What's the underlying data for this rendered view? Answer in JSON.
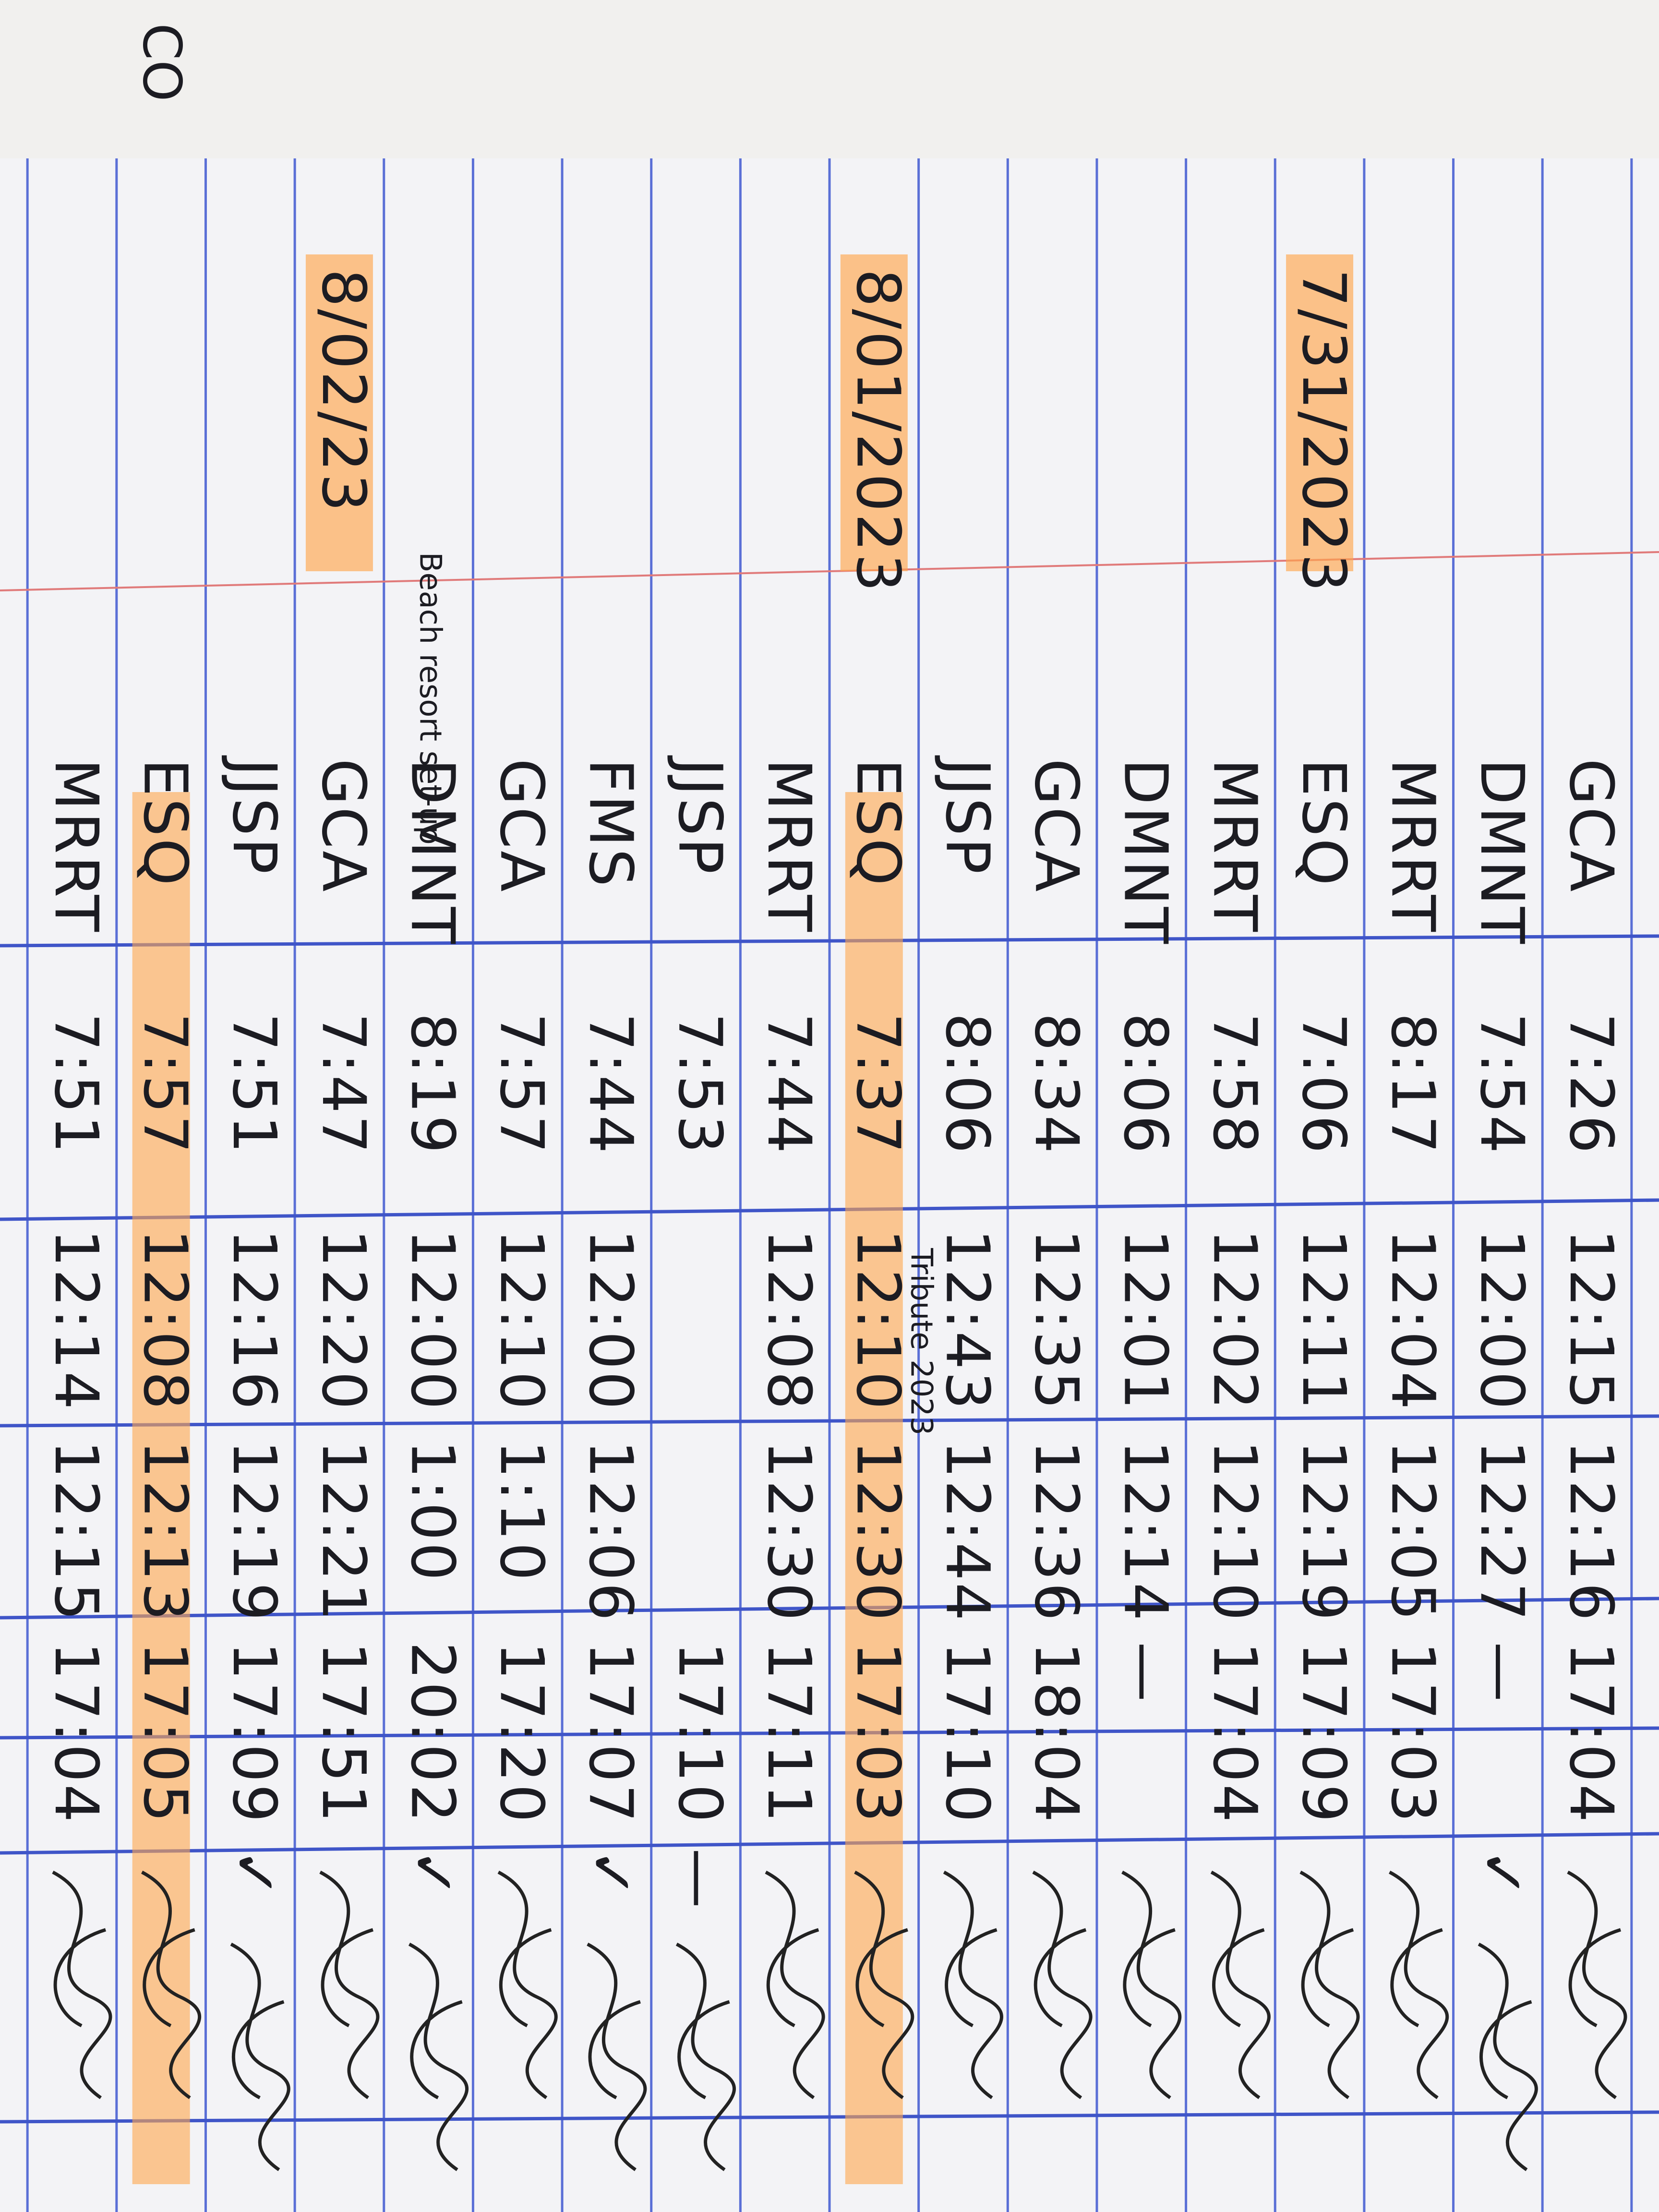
{
  "cover_text": "CO",
  "rows": [
    {
      "name": "GCA",
      "time_in": "7:26",
      "lunch_out": "12:15",
      "lunch_in": "12:16",
      "time_out": "17:04"
    },
    {
      "name": "DMNT",
      "time_in": "7:54",
      "lunch_out": "12:00",
      "lunch_in": "12:27",
      "time_out": "—",
      "mark": "✓"
    },
    {
      "name": "MRRT",
      "time_in": "8:17",
      "lunch_out": "12:04",
      "lunch_in": "12:05",
      "time_out": "17:03"
    },
    {
      "name": "ESQ",
      "date": "7/31/2023",
      "time_in": "7:06",
      "lunch_out": "12:11",
      "lunch_in": "12:19",
      "time_out": "17:09"
    },
    {
      "name": "MRRT",
      "time_in": "7:58",
      "lunch_out": "12:02",
      "lunch_in": "12:10",
      "time_out": "17:04"
    },
    {
      "name": "DMNT",
      "time_in": "8:06",
      "lunch_out": "12:01",
      "lunch_in": "12:14",
      "time_out": "—"
    },
    {
      "name": "GCA",
      "time_in": "8:34",
      "lunch_out": "12:35",
      "lunch_in": "12:36",
      "time_out": "18:04"
    },
    {
      "name": "JJSP",
      "time_in": "8:06",
      "lunch_out": "12:43",
      "lunch_in": "12:44",
      "time_out": "17:10"
    },
    {
      "name": "ESQ",
      "date": "8/01/2023",
      "note": "Tribute 2023",
      "highlight": true,
      "time_in": "7:37",
      "lunch_out": "12:10",
      "lunch_in": "12:30",
      "time_out": "17:03"
    },
    {
      "name": "MRRT",
      "time_in": "7:44",
      "lunch_out": "12:08",
      "lunch_in": "12:30",
      "time_out": "17:11"
    },
    {
      "name": "JJSP",
      "time_in": "7:53",
      "lunch_out": null,
      "lunch_in": null,
      "time_out": "17:10",
      "mark": "—"
    },
    {
      "name": "FMS",
      "time_in": "7:44",
      "lunch_out": "12:00",
      "lunch_in": "12:06",
      "time_out": "17:07",
      "mark": "✓"
    },
    {
      "name": "GCA",
      "time_in": "7:57",
      "lunch_out": "12:10",
      "lunch_in": "1:10",
      "time_out": "17:20"
    },
    {
      "name": "DMNT",
      "note": "Beach resort set-up",
      "time_in": "8:19",
      "lunch_out": "12:00",
      "lunch_in": "1:00",
      "time_out": "20:02",
      "mark": "✓"
    },
    {
      "name": "GCA",
      "date": "8/02/23",
      "time_in": "7:47",
      "lunch_out": "12:20",
      "lunch_in": "12:21",
      "time_out": "17:51"
    },
    {
      "name": "JJSP",
      "time_in": "7:51",
      "lunch_out": "12:16",
      "lunch_in": "12:19",
      "time_out": "17:09",
      "mark": "✓"
    },
    {
      "name": "ESQ",
      "highlight": true,
      "time_in": "7:57",
      "lunch_out": "12:08",
      "lunch_in": "12:13",
      "time_out": "17:05"
    },
    {
      "name": "MRRT",
      "time_in": "7:51",
      "lunch_out": "12:14",
      "lunch_in": "12:15",
      "time_out": "17:04"
    }
  ]
}
